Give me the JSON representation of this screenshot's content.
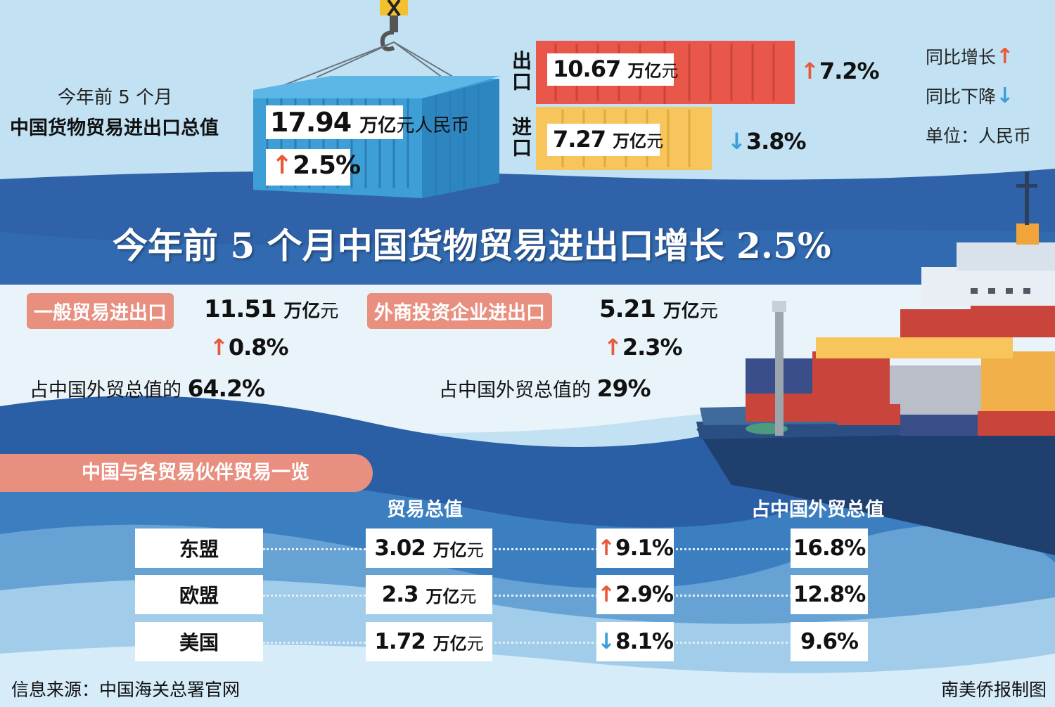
{
  "top": {
    "total_caption_line1": "今年前 5 个月",
    "total_caption_line2": "中国货物贸易进出口总值",
    "total_value": "17.94",
    "total_unit_bold": "万亿",
    "total_unit_rest": "元人民币",
    "total_growth": "2.5%",
    "export_label": "出口",
    "export_value": "10.67",
    "export_unit_bold": "万亿",
    "export_unit_rest": "元",
    "export_growth": "7.2%",
    "import_label": "进口",
    "import_value": "7.27",
    "import_unit_bold": "万亿",
    "import_unit_rest": "元",
    "import_growth": "3.8%"
  },
  "legend": {
    "yoy_up": "同比增长",
    "yoy_down": "同比下降",
    "unit": "单位：人民币"
  },
  "headline": "今年前 5 个月中国货物贸易进出口增长 2.5%",
  "general_trade": {
    "label": "一般贸易进出口",
    "value": "11.51",
    "unit_bold": "万亿",
    "unit_rest": "元",
    "growth": "0.8%",
    "share_text": "占中国外贸总值的",
    "share_value": "64.2%"
  },
  "foreign_invested": {
    "label": "外商投资企业进出口",
    "value": "5.21",
    "unit_bold": "万亿",
    "unit_rest": "元",
    "growth": "2.3%",
    "share_text": "占中国外贸总值的",
    "share_value": "29%"
  },
  "partners": {
    "title": "中国与各贸易伙伴贸易一览",
    "col_total": "贸易总值",
    "col_share": "占中国外贸总值",
    "rows": [
      {
        "name": "东盟",
        "value": "3.02",
        "unit_bold": "万亿",
        "unit_rest": "元",
        "growth": "9.1%",
        "dir": "up",
        "share": "16.8%"
      },
      {
        "name": "欧盟",
        "value": "2.3",
        "unit_bold": "万亿",
        "unit_rest": "元",
        "growth": "2.9%",
        "dir": "up",
        "share": "12.8%"
      },
      {
        "name": "美国",
        "value": "1.72",
        "unit_bold": "万亿",
        "unit_rest": "元",
        "growth": "8.1%",
        "dir": "down",
        "share": "9.6%"
      }
    ]
  },
  "footer": {
    "source": "信息来源：中国海关总署官网",
    "credit": "南美侨报制图"
  },
  "colors": {
    "sky": "#bfe0f2",
    "band_blue": "#2f62a8",
    "pill": "#e98f80",
    "up_arrow": "#e8593a",
    "down_arrow": "#3a9fd8",
    "export_container": "#e9574a",
    "import_container": "#f7c55b",
    "main_container": "#3d9fd6"
  }
}
